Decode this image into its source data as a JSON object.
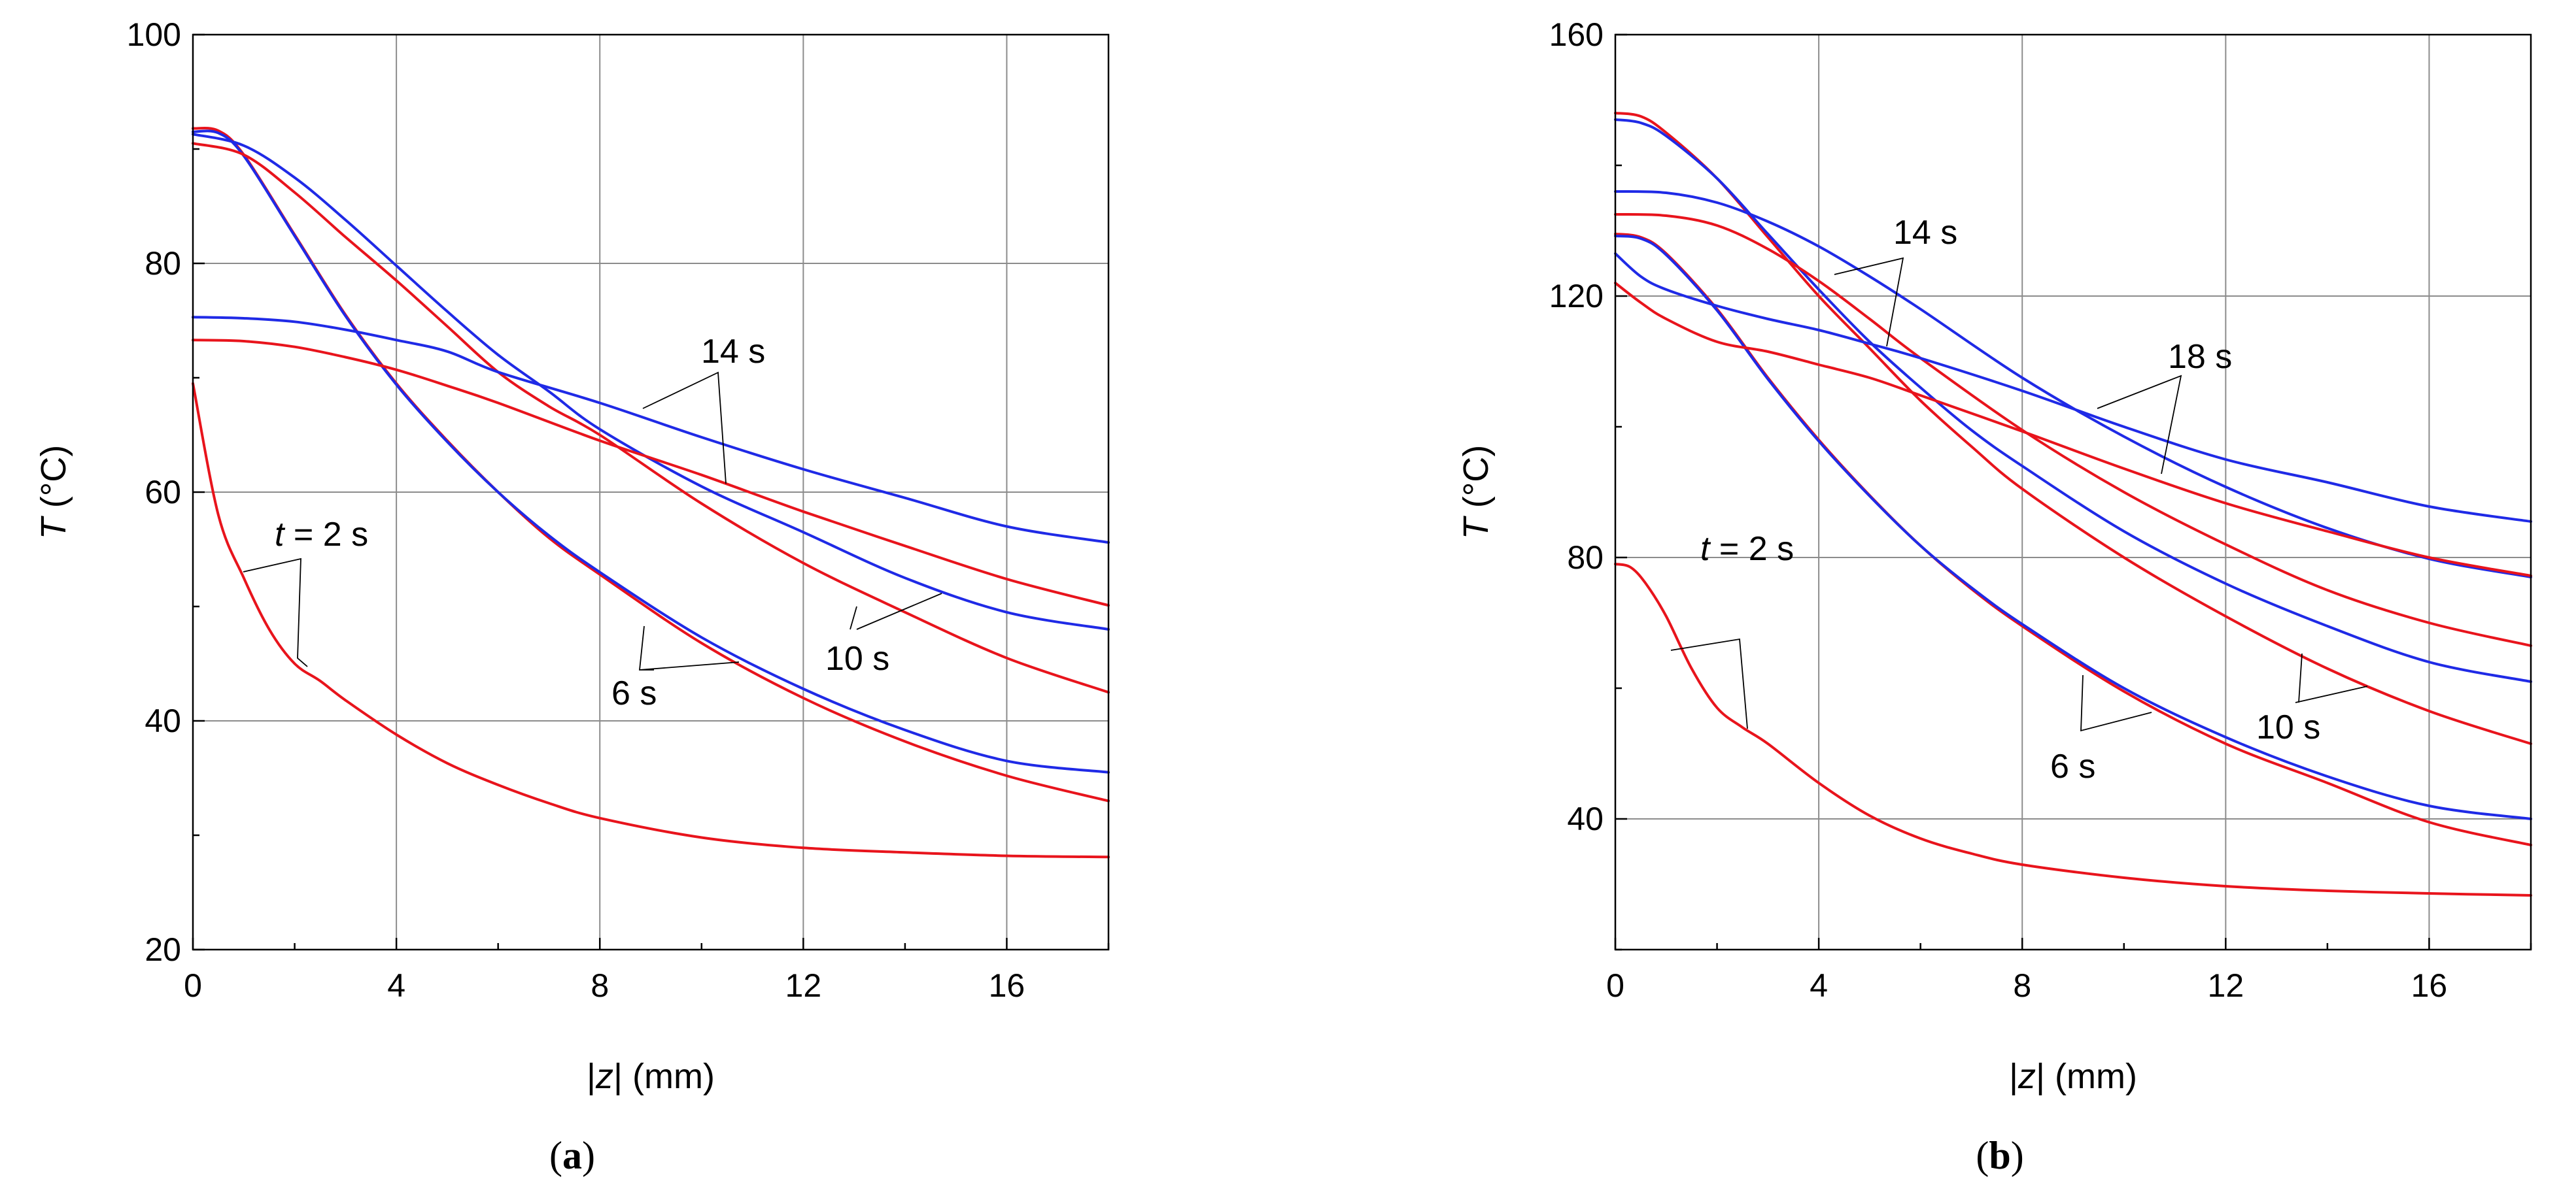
{
  "chart_data": [
    {
      "type": "line",
      "panel_label": "a",
      "xlabel_italic": "z",
      "xlabel_pre": "|",
      "xlabel_post": "| (mm)",
      "ylabel_italic": "T",
      "ylabel_post": " (°C)",
      "xlim": [
        0,
        18
      ],
      "ylim": [
        20,
        100
      ],
      "xticks": [
        0,
        4,
        8,
        12,
        16
      ],
      "yticks": [
        20,
        40,
        60,
        80,
        100
      ],
      "grid": true,
      "colors": {
        "red": "#e8141c",
        "blue": "#1f2ae6"
      },
      "series": [
        {
          "name": "t = 2 s (red)",
          "color": "red",
          "x": [
            0,
            0.5,
            1,
            1.5,
            2,
            2.5,
            3,
            4,
            5,
            6,
            7,
            8,
            10,
            12,
            14,
            16,
            18
          ],
          "y": [
            69.5,
            58,
            52.5,
            48,
            45,
            43.5,
            41.8,
            38.8,
            36.3,
            34.4,
            32.8,
            31.5,
            29.8,
            28.9,
            28.5,
            28.2,
            28.1
          ]
        },
        {
          "name": "6 s (red)",
          "color": "red",
          "x": [
            0,
            0.5,
            1,
            2,
            3,
            4,
            5,
            6,
            7,
            8,
            10,
            12,
            14,
            16,
            18
          ],
          "y": [
            91.8,
            91.6,
            89.5,
            82.5,
            75.5,
            69.5,
            64.5,
            60,
            56,
            52.8,
            46.8,
            42,
            38.2,
            35.2,
            33
          ]
        },
        {
          "name": "6 s (blue)",
          "color": "blue",
          "x": [
            0,
            0.5,
            1,
            2,
            3,
            4,
            5,
            6,
            7,
            8,
            10,
            12,
            14,
            16,
            18
          ],
          "y": [
            91.5,
            91.4,
            89.4,
            82.4,
            75.4,
            69.4,
            64.4,
            60,
            56.2,
            53,
            47.3,
            42.8,
            39.2,
            36.5,
            35.5
          ]
        },
        {
          "name": "10 s (red)",
          "color": "red",
          "x": [
            0,
            1,
            2,
            3,
            4,
            5,
            6,
            7,
            8,
            10,
            12,
            14,
            16,
            18
          ],
          "y": [
            90.5,
            89.5,
            86.2,
            82.3,
            78.5,
            74.5,
            70.5,
            67.5,
            65,
            59,
            53.8,
            49.5,
            45.5,
            42.5
          ]
        },
        {
          "name": "10 s (blue)",
          "color": "blue",
          "x": [
            0,
            1,
            2,
            3,
            4,
            5,
            6,
            7,
            8,
            10,
            12,
            14,
            16,
            18
          ],
          "y": [
            91.3,
            90.3,
            87.5,
            83.8,
            79.8,
            75.8,
            72,
            68.8,
            65.5,
            60.5,
            56.5,
            52.5,
            49.5,
            48
          ]
        },
        {
          "name": "14 s (red)",
          "color": "red",
          "x": [
            0,
            1,
            2,
            3,
            4,
            5,
            6,
            8,
            10,
            12,
            14,
            16,
            18
          ],
          "y": [
            73.3,
            73.2,
            72.7,
            71.8,
            70.7,
            69.3,
            67.8,
            64.5,
            61.5,
            58.3,
            55.3,
            52.4,
            50.1
          ]
        },
        {
          "name": "14 s (blue)",
          "color": "blue",
          "x": [
            0,
            1,
            2,
            3,
            4,
            5,
            6,
            8,
            10,
            12,
            14,
            16,
            18
          ],
          "y": [
            75.3,
            75.2,
            74.9,
            74.2,
            73.3,
            72.3,
            70.5,
            67.8,
            64.8,
            62,
            59.5,
            57,
            55.6
          ]
        }
      ],
      "annotations": [
        {
          "text_italic": "t",
          "text": " = 2 s"
        },
        {
          "text": "6 s"
        },
        {
          "text": "10 s"
        },
        {
          "text": "14 s"
        }
      ]
    },
    {
      "type": "line",
      "panel_label": "b",
      "xlabel_italic": "z",
      "xlabel_pre": "|",
      "xlabel_post": "| (mm)",
      "ylabel_italic": "T",
      "ylabel_post": " (°C)",
      "xlim": [
        0,
        18
      ],
      "ylim": [
        20,
        160
      ],
      "xticks": [
        0,
        4,
        8,
        12,
        16
      ],
      "yticks": [
        40,
        80,
        120,
        160
      ],
      "grid": true,
      "colors": {
        "red": "#e8141c",
        "blue": "#1f2ae6"
      },
      "series": [
        {
          "name": "t = 2 s (red)",
          "color": "red",
          "x": [
            0,
            0.3,
            0.6,
            1,
            1.5,
            2,
            2.5,
            3,
            4,
            5,
            6,
            7,
            8,
            10,
            12,
            14,
            16,
            18
          ],
          "y": [
            79,
            78.5,
            76,
            71,
            63,
            57,
            54,
            51.5,
            45.5,
            40.5,
            37,
            34.7,
            33,
            31,
            29.7,
            29,
            28.6,
            28.3
          ]
        },
        {
          "name": "6 s (red)",
          "color": "red",
          "x": [
            0,
            0.5,
            1,
            2,
            3,
            4,
            5,
            6,
            7,
            8,
            10,
            12,
            14,
            16,
            18
          ],
          "y": [
            129.5,
            129,
            126.5,
            118,
            107.5,
            98,
            89.5,
            81.8,
            75.2,
            69.5,
            59.5,
            51.5,
            45.5,
            39.5,
            36
          ]
        },
        {
          "name": "6 s (blue)",
          "color": "blue",
          "x": [
            0,
            0.5,
            1,
            2,
            3,
            4,
            5,
            6,
            7,
            8,
            10,
            12,
            14,
            16,
            18
          ],
          "y": [
            129.2,
            128.8,
            126.3,
            117.8,
            107.3,
            97.8,
            89.4,
            81.8,
            75.4,
            69.8,
            60,
            52.5,
            46.5,
            42,
            40
          ]
        },
        {
          "name": "10 s (red)",
          "color": "red",
          "x": [
            0,
            0.5,
            1,
            2,
            3,
            4,
            5,
            6,
            7,
            8,
            10,
            12,
            14,
            16,
            18
          ],
          "y": [
            148,
            147.5,
            145,
            138,
            129,
            120,
            112,
            104,
            97,
            90.5,
            80,
            71,
            63,
            56.5,
            51.5
          ]
        },
        {
          "name": "10 s (blue)",
          "color": "blue",
          "x": [
            0,
            0.5,
            1,
            2,
            3,
            4,
            5,
            6,
            7,
            8,
            10,
            12,
            14,
            16,
            18
          ],
          "y": [
            147,
            146.5,
            144.5,
            138,
            129.5,
            121,
            113,
            106,
            99.5,
            94,
            84,
            76,
            69.5,
            64,
            61
          ]
        },
        {
          "name": "14 s (red)",
          "color": "red",
          "x": [
            0,
            1,
            2,
            3,
            4,
            5,
            6,
            8,
            10,
            12,
            14,
            16,
            18
          ],
          "y": [
            132.5,
            132.3,
            130.8,
            127.2,
            122.3,
            116.5,
            110.5,
            99.5,
            90,
            82,
            75,
            70,
            66.5
          ]
        },
        {
          "name": "14 s (blue)",
          "color": "blue",
          "x": [
            0,
            1,
            2,
            3,
            4,
            5,
            6,
            8,
            10,
            12,
            14,
            16,
            18
          ],
          "y": [
            136,
            135.8,
            134.3,
            131.4,
            127.6,
            123,
            118,
            107.5,
            98.5,
            90.8,
            84.5,
            79.8,
            77
          ]
        },
        {
          "name": "18 s (red)",
          "color": "red",
          "x": [
            0,
            0.5,
            1,
            2,
            3,
            4,
            5,
            6,
            8,
            10,
            12,
            14,
            16,
            18
          ],
          "y": [
            122,
            119,
            116.5,
            113,
            111.5,
            109.5,
            107.5,
            104.8,
            99.3,
            93.6,
            88.3,
            84,
            80,
            77.2
          ]
        },
        {
          "name": "18 s (blue)",
          "color": "blue",
          "x": [
            0,
            0.5,
            1,
            2,
            3,
            4,
            5,
            6,
            8,
            10,
            12,
            14,
            16,
            18
          ],
          "y": [
            126.5,
            123,
            121,
            118.5,
            116.5,
            114.8,
            112.7,
            110.5,
            105.5,
            100,
            95,
            91.5,
            87.8,
            85.5
          ]
        }
      ],
      "annotations": [
        {
          "text_italic": "t",
          "text": " = 2 s"
        },
        {
          "text": "6 s"
        },
        {
          "text": "10 s"
        },
        {
          "text": "14 s"
        },
        {
          "text": "18 s"
        }
      ]
    }
  ]
}
